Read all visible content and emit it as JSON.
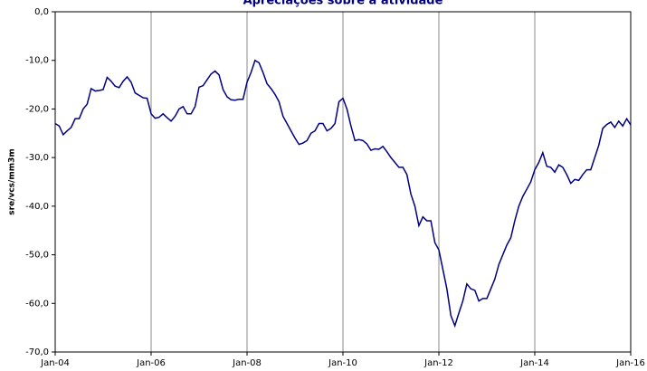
{
  "chart_data": {
    "type": "line",
    "title": "Apreciações sobre a atividade",
    "y_label": "sre/vcs/mm3m",
    "categories": [
      "Jan-04",
      null,
      null,
      null,
      null,
      null,
      null,
      null,
      null,
      null,
      null,
      null,
      null,
      null,
      null,
      null,
      null,
      null,
      null,
      null,
      null,
      null,
      null,
      null,
      "Jan-06",
      null,
      null,
      null,
      null,
      null,
      null,
      null,
      null,
      null,
      null,
      null,
      null,
      null,
      null,
      null,
      null,
      null,
      null,
      null,
      null,
      null,
      null,
      null,
      "Jan-08",
      null,
      null,
      null,
      null,
      null,
      null,
      null,
      null,
      null,
      null,
      null,
      null,
      null,
      null,
      null,
      null,
      null,
      null,
      null,
      null,
      null,
      null,
      null,
      "Jan-10",
      null,
      null,
      null,
      null,
      null,
      null,
      null,
      null,
      null,
      null,
      null,
      null,
      null,
      null,
      null,
      null,
      null,
      null,
      null,
      null,
      null,
      null,
      null,
      "Jan-12",
      null,
      null,
      null,
      null,
      null,
      null,
      null,
      null,
      null,
      null,
      null,
      null,
      null,
      null,
      null,
      null,
      null,
      null,
      null,
      null,
      null,
      null,
      null,
      "Jan-14",
      null,
      null,
      null,
      null,
      null,
      null,
      null,
      null,
      null,
      null,
      null,
      null,
      null,
      null,
      null,
      null,
      null,
      null,
      null,
      null,
      null,
      null,
      null,
      "Jan-16"
    ],
    "series": [
      {
        "color": "#000080",
        "values": [
          -23,
          -23.5,
          -25.3,
          -24.5,
          -23.8,
          -22,
          -22,
          -20,
          -19,
          -15.8,
          -16.3,
          -16.2,
          -16,
          -13.5,
          -14.3,
          -15.3,
          -15.6,
          -14.3,
          -13.4,
          -14.5,
          -16.7,
          -17.2,
          -17.7,
          -17.8,
          -21,
          -21.9,
          -21.7,
          -21,
          -21.8,
          -22.5,
          -21.5,
          -20,
          -19.5,
          -21,
          -21,
          -19.5,
          -15.5,
          -15.2,
          -14,
          -12.8,
          -12.2,
          -13,
          -16,
          -17.5,
          -18.1,
          -18.2,
          -18,
          -18,
          -14.5,
          -12.5,
          -10,
          -10.5,
          -12.5,
          -14.8,
          -15.8,
          -17,
          -18.5,
          -21.5,
          -23,
          -24.5,
          -26,
          -27.3,
          -27,
          -26.5,
          -25,
          -24.5,
          -23,
          -23,
          -24.5,
          -24,
          -23,
          -18.5,
          -17.8,
          -20,
          -23.5,
          -26.5,
          -26.3,
          -26.5,
          -27.2,
          -28.5,
          -28.2,
          -28.3,
          -27.7,
          -28.8,
          -30,
          -31,
          -32,
          -32,
          -33.5,
          -37.5,
          -40,
          -44,
          -42.2,
          -43,
          -43,
          -47.5,
          -49,
          -53,
          -57,
          -62.5,
          -64.6,
          -62,
          -59.5,
          -56,
          -57,
          -57.3,
          -59.5,
          -59,
          -59,
          -57,
          -55,
          -52,
          -50,
          -48,
          -46.5,
          -43,
          -40,
          -38,
          -36.5,
          -35,
          -32.5,
          -31,
          -29,
          -31.8,
          -32,
          -33,
          -31.5,
          -32,
          -33.5,
          -35.3,
          -34.5,
          -34.7,
          -33.5,
          -32.5,
          -32.5,
          -30,
          -27.5,
          -24,
          -23.2,
          -22.7,
          -23.8,
          -22.5,
          -23.5,
          -22,
          -23.3
        ]
      }
    ],
    "ylim": [
      -70,
      0
    ],
    "yticks": [
      {
        "value": -70,
        "label": "-70,0"
      },
      {
        "value": -60,
        "label": "-60,0"
      },
      {
        "value": -50,
        "label": "-50,0"
      },
      {
        "value": -40,
        "label": "-40,0"
      },
      {
        "value": -30,
        "label": "-30,0"
      },
      {
        "value": -20,
        "label": "-20,0"
      },
      {
        "value": -10,
        "label": "-10,0"
      },
      {
        "value": 0,
        "label": "0,0"
      }
    ],
    "grid": true
  }
}
